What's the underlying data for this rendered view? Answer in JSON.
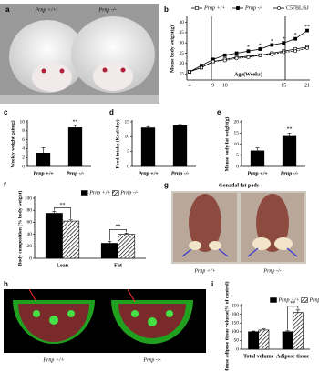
{
  "figures": [
    {
      "panel": "a",
      "labels": [
        "Prnp +/+",
        "Prnp -/-"
      ]
    },
    {
      "panel": "g",
      "title": "Gonadal  fat pads",
      "labels": [
        "Prnp +/+",
        "Prnp -/-"
      ]
    },
    {
      "panel": "h",
      "labels": [
        "Prnp +/+",
        "Prnp -/-"
      ]
    }
  ],
  "chart_data": [
    {
      "type": "line",
      "panel": "b",
      "ylabel": "Mouse body weight(g)",
      "xlabel": "Age(Weeks)",
      "categories": [
        "4",
        null,
        "9",
        "10",
        null,
        null,
        null,
        null,
        "15",
        null,
        "21"
      ],
      "ylim": [
        12,
        42
      ],
      "yticks": [
        15,
        20,
        25,
        30,
        35,
        40
      ],
      "series": [
        {
          "name": "Prnp +/+",
          "color": "#000000",
          "marker": "open-square",
          "values": [
            16,
            18,
            21,
            22,
            23,
            23.5,
            24,
            25,
            26,
            27,
            28
          ]
        },
        {
          "name": "Prnp -/-",
          "color": "#000000",
          "marker": "filled-square",
          "values": [
            16,
            19,
            22,
            24,
            25,
            26,
            27,
            29,
            30,
            32,
            36
          ]
        },
        {
          "name": "C57BL/6J",
          "color": "#000000",
          "marker": "open-circle",
          "values": [
            16,
            18,
            21,
            21.5,
            22.5,
            23,
            24,
            24.5,
            25.5,
            26,
            27.5
          ]
        }
      ],
      "annotations": [
        null,
        null,
        null,
        null,
        null,
        "*",
        "*",
        "*",
        "*",
        "*",
        "**"
      ]
    },
    {
      "type": "bar",
      "panel": "c",
      "ylabel": "Weekly weight gain(g)",
      "category_style": "italic",
      "categories": [
        "Prnp +/+",
        "Prnp -/-"
      ],
      "values": [
        3,
        8.7
      ],
      "errors": [
        1.2,
        0.5
      ],
      "color": "#000000",
      "ylim": [
        0,
        10
      ],
      "yticks": [
        0,
        2,
        4,
        6,
        8,
        10
      ],
      "annotations": [
        null,
        "**"
      ]
    },
    {
      "type": "bar",
      "panel": "d",
      "ylabel": "Food intake (Kcal/day)",
      "category_style": "italic",
      "categories": [
        "Prnp +/+",
        "Prnp -/-"
      ],
      "values": [
        13,
        13.8
      ],
      "errors": [
        0.4,
        0.3
      ],
      "color": "#000000",
      "ylim": [
        0,
        15
      ],
      "yticks": [
        0,
        5,
        10,
        15
      ]
    },
    {
      "type": "bar",
      "panel": "e",
      "ylabel": "Mouse body fat weight(g)",
      "category_style": "italic",
      "categories": [
        "Prnp +/+",
        "Prnp -/-"
      ],
      "values": [
        7,
        13.5
      ],
      "errors": [
        1.3,
        1.5
      ],
      "color": "#000000",
      "ylim": [
        0,
        20
      ],
      "yticks": [
        0,
        5,
        10,
        15,
        20
      ],
      "annotations": [
        null,
        "**"
      ]
    },
    {
      "type": "bar",
      "panel": "f",
      "ylabel": "Body composition (% body weight)",
      "categories": [
        "Lean",
        "Fat"
      ],
      "ylim": [
        0,
        100
      ],
      "yticks": [
        0,
        20,
        40,
        60,
        80,
        100
      ],
      "series": [
        {
          "name": "Prnp +/+",
          "color": "#000000",
          "values": [
            75,
            25
          ],
          "errors": [
            3,
            3
          ]
        },
        {
          "name": "Prnp -/-",
          "color": "#000000",
          "pattern": "hatch",
          "values": [
            62,
            40
          ],
          "errors": [
            2,
            2
          ]
        }
      ],
      "annotations": [
        "**",
        "**"
      ]
    },
    {
      "type": "bar",
      "panel": "i",
      "ylabel": "Mouse adipose tissue volume(% of control)",
      "categories": [
        "Total volume",
        "Adipose tissue"
      ],
      "ylim": [
        0,
        250
      ],
      "yticks": [
        0,
        50,
        100,
        150,
        200,
        250
      ],
      "series": [
        {
          "name": "Prnp +/+",
          "color": "#000000",
          "values": [
            100,
            100
          ],
          "errors": [
            4,
            5
          ]
        },
        {
          "name": "Prnp -/-",
          "color": "#000000",
          "pattern": "hatch",
          "values": [
            110,
            210
          ],
          "errors": [
            6,
            15
          ]
        }
      ],
      "annotations": [
        null,
        "**"
      ]
    }
  ]
}
